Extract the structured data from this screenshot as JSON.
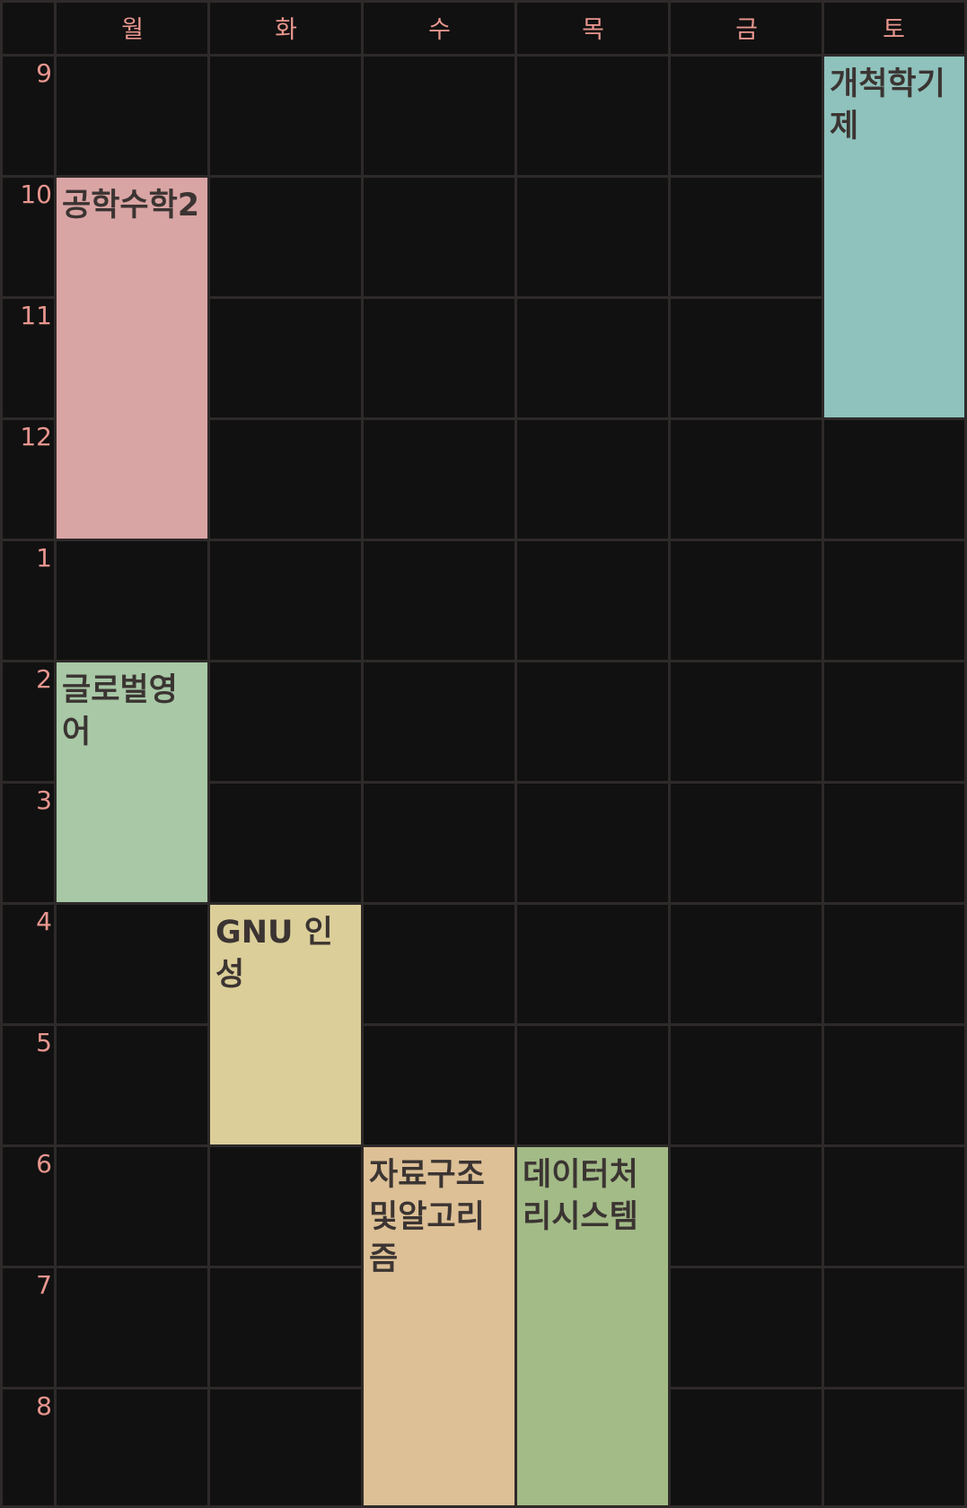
{
  "days": [
    "월",
    "화",
    "수",
    "목",
    "금",
    "토"
  ],
  "hours": [
    "9",
    "10",
    "11",
    "12",
    "1",
    "2",
    "3",
    "4",
    "5",
    "6",
    "7",
    "8"
  ],
  "courses": [
    {
      "id": "engineering-math-2",
      "title": "공학수학2",
      "color": "#d9a5a4"
    },
    {
      "id": "pioneer-seminar",
      "title": "개척학기제",
      "color": "#8fc2bc"
    },
    {
      "id": "global-english",
      "title": "글로벌영어",
      "color": "#a8c8a6"
    },
    {
      "id": "gnu-character",
      "title": "GNU 인성",
      "color": "#dbce99"
    },
    {
      "id": "data-structures-algorithms",
      "title": "자료구조및알고리즘",
      "color": "#ddc096"
    },
    {
      "id": "data-processing-system",
      "title": "데이터처리시스템",
      "color": "#a3bb87"
    }
  ]
}
